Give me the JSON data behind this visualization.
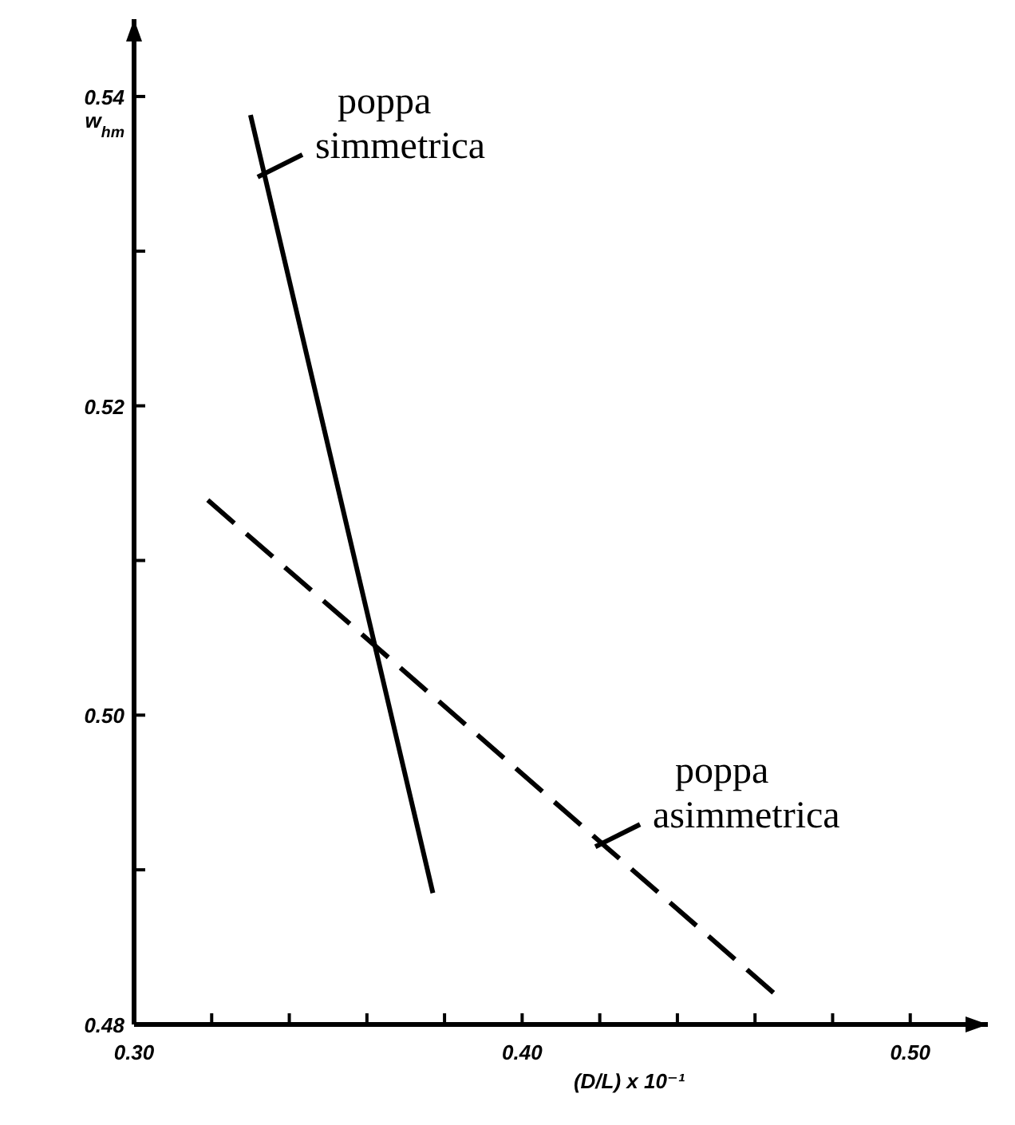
{
  "chart_data": {
    "type": "line",
    "xlabel": "(D/L) x 10⁻¹",
    "ylabel": "w$_{hm}$",
    "xlim": [
      0.3,
      0.52
    ],
    "ylim": [
      0.48,
      0.545
    ],
    "xticks": [
      {
        "value": 0.3,
        "label": "0.30"
      },
      {
        "value": 0.32,
        "label": null
      },
      {
        "value": 0.34,
        "label": null
      },
      {
        "value": 0.36,
        "label": null
      },
      {
        "value": 0.38,
        "label": null
      },
      {
        "value": 0.4,
        "label": "0.40"
      },
      {
        "value": 0.42,
        "label": null
      },
      {
        "value": 0.44,
        "label": null
      },
      {
        "value": 0.46,
        "label": null
      },
      {
        "value": 0.48,
        "label": null
      },
      {
        "value": 0.5,
        "label": "0.50"
      }
    ],
    "yticks": [
      {
        "value": 0.48,
        "label": "0.48"
      },
      {
        "value": 0.49,
        "label": null
      },
      {
        "value": 0.5,
        "label": "0.50"
      },
      {
        "value": 0.51,
        "label": null
      },
      {
        "value": 0.52,
        "label": "0.52"
      },
      {
        "value": 0.53,
        "label": null
      },
      {
        "value": 0.54,
        "label": "0.54"
      }
    ],
    "grid": false,
    "series": [
      {
        "color": "#000000",
        "line_style": "solid",
        "x": [
          0.33,
          0.377
        ],
        "values": [
          0.5388,
          0.4885
        ]
      },
      {
        "color": "#000000",
        "line_style": "dashed",
        "x": [
          0.319,
          0.465
        ],
        "values": [
          0.5139,
          0.482
        ]
      }
    ],
    "annotations": [
      {
        "text": "poppa\nsimmetrica",
        "x": 0.3335,
        "y": 0.535
      },
      {
        "text": "poppa\nasimmetrica",
        "x": 0.4205,
        "y": 0.4917
      }
    ]
  }
}
